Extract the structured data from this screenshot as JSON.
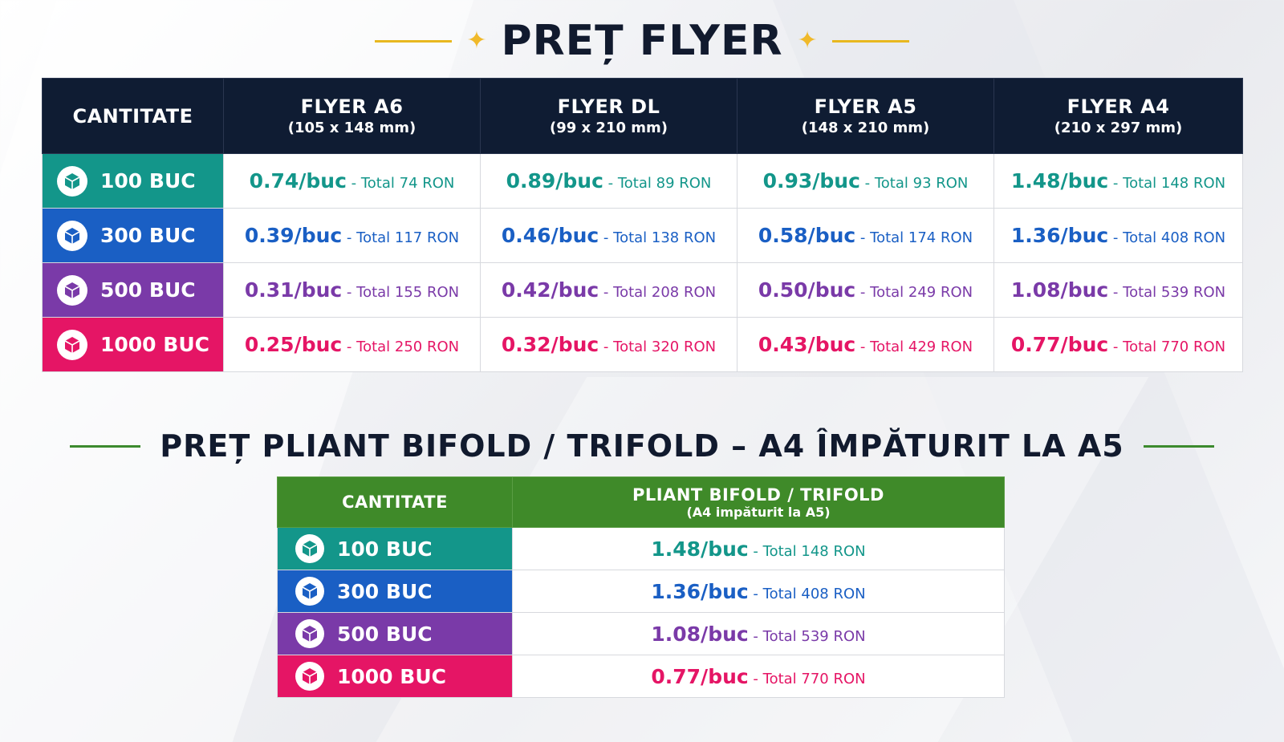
{
  "colors": {
    "teal": "#13968a",
    "blue": "#1a5fc4",
    "purple": "#7a3aa8",
    "pink": "#e51565",
    "navy": "#0f1c33",
    "green": "#3f8a29",
    "gold": "#f0b92a"
  },
  "flyer": {
    "title": "PREȚ FLYER",
    "qty_header": "CANTITATE",
    "columns": [
      {
        "name": "FLYER A6",
        "size": "(105 x 148 mm)"
      },
      {
        "name": "FLYER DL",
        "size": "(99 x 210 mm)"
      },
      {
        "name": "FLYER A5",
        "size": "(148 x 210 mm)"
      },
      {
        "name": "FLYER A4",
        "size": "(210 x 297 mm)"
      }
    ],
    "rows": [
      {
        "qty": "100 BUC",
        "icon": "box-icon",
        "cells": [
          {
            "unit": "0.74/buc",
            "total": " - Total 74 RON"
          },
          {
            "unit": "0.89/buc",
            "total": " - Total 89 RON"
          },
          {
            "unit": "0.93/buc",
            "total": " - Total 93 RON"
          },
          {
            "unit": "1.48/buc",
            "total": " - Total 148 RON"
          }
        ]
      },
      {
        "qty": "300 BUC",
        "icon": "box-icon",
        "cells": [
          {
            "unit": "0.39/buc",
            "total": " - Total 117 RON"
          },
          {
            "unit": "0.46/buc",
            "total": " - Total 138 RON"
          },
          {
            "unit": "0.58/buc",
            "total": " - Total 174 RON"
          },
          {
            "unit": "1.36/buc",
            "total": " - Total 408 RON"
          }
        ]
      },
      {
        "qty": "500 BUC",
        "icon": "box-icon",
        "cells": [
          {
            "unit": "0.31/buc",
            "total": " - Total 155 RON"
          },
          {
            "unit": "0.42/buc",
            "total": " - Total 208 RON"
          },
          {
            "unit": "0.50/buc",
            "total": " - Total 249 RON"
          },
          {
            "unit": "1.08/buc",
            "total": " - Total 539 RON"
          }
        ]
      },
      {
        "qty": "1000 BUC",
        "icon": "box-icon",
        "cells": [
          {
            "unit": "0.25/buc",
            "total": " - Total 250 RON"
          },
          {
            "unit": "0.32/buc",
            "total": " - Total 320 RON"
          },
          {
            "unit": "0.43/buc",
            "total": " - Total 429 RON"
          },
          {
            "unit": "0.77/buc",
            "total": " - Total 770 RON"
          }
        ]
      }
    ]
  },
  "pliant": {
    "title": "PREȚ PLIANT BIFOLD / TRIFOLD – A4 ÎMPĂTURIT LA A5",
    "qty_header": "CANTITATE",
    "column": {
      "name": "PLIANT BIFOLD / TRIFOLD",
      "size": "(A4 impăturit la A5)"
    },
    "rows": [
      {
        "qty": "100 BUC",
        "unit": "1.48/buc",
        "total": " - Total 148 RON"
      },
      {
        "qty": "300 BUC",
        "unit": "1.36/buc",
        "total": " - Total 408 RON"
      },
      {
        "qty": "500 BUC",
        "unit": "1.08/buc",
        "total": " - Total 539 RON"
      },
      {
        "qty": "1000 BUC",
        "unit": "0.77/buc",
        "total": " - Total 770 RON"
      }
    ]
  }
}
